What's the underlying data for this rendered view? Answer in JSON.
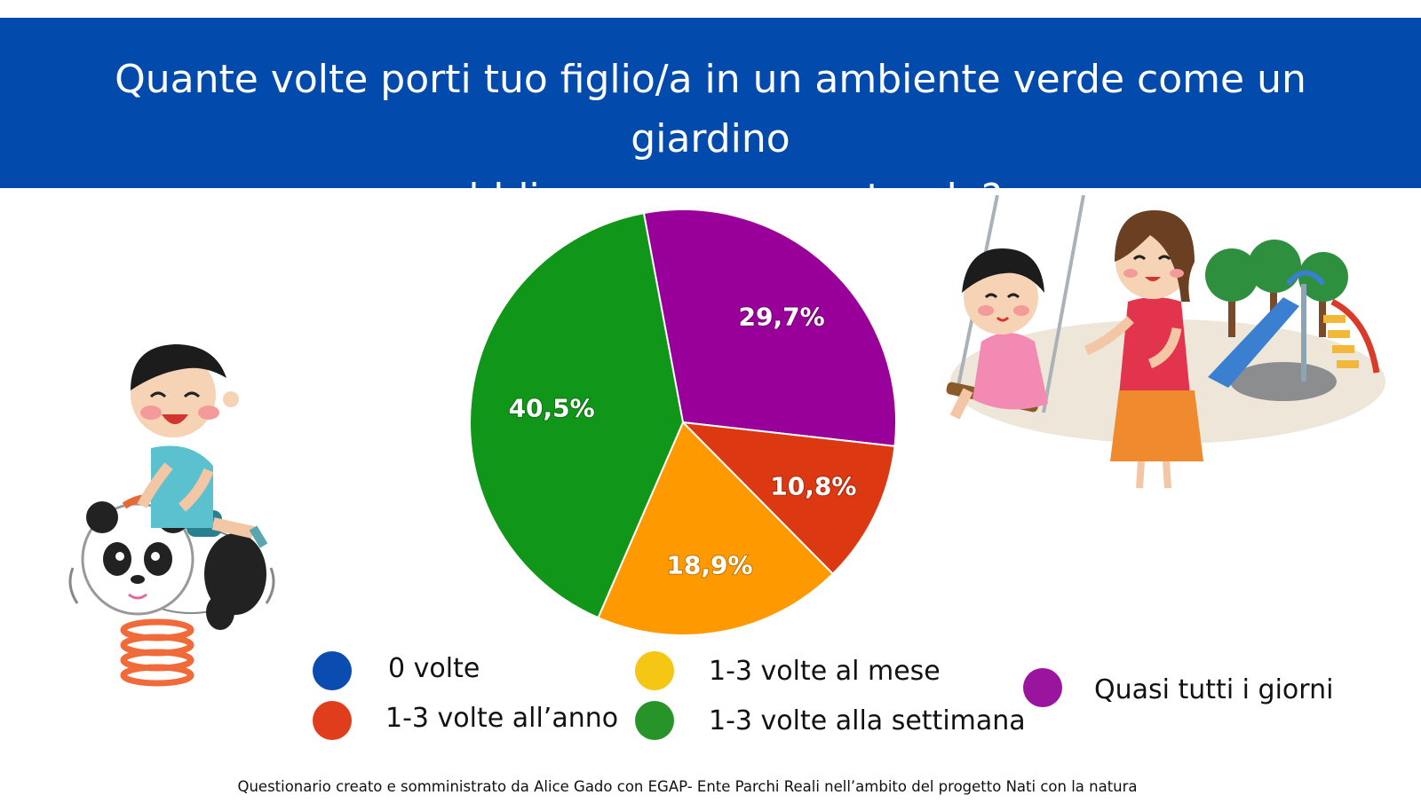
{
  "header": {
    "title_line1": "Quante volte porti tuo figlio/a in un ambiente verde come un giardino",
    "title_line2": "pubblico o un parco naturale?"
  },
  "chart_data": {
    "type": "pie",
    "categories": [
      "0 volte",
      "1-3 volte all’anno",
      "1-3 volte al mese",
      "1-3 volte alla settimana",
      "Quasi tutti i giorni"
    ],
    "values": [
      0,
      10.8,
      18.9,
      40.5,
      29.7
    ],
    "value_labels": [
      "",
      "10,8%",
      "18,9%",
      "40,5%",
      "29,7%"
    ],
    "colors": [
      "#0b4cb0",
      "#dc3912",
      "#ff9900",
      "#109618",
      "#990099"
    ],
    "legend_colors": [
      "#0b4cb0",
      "#df3d1c",
      "#f5c614",
      "#27942a",
      "#9b149e"
    ],
    "start_angle_deg": -8,
    "legend_placement": "bottom"
  },
  "legend": {
    "items": [
      {
        "label": "0 volte",
        "color": "#0b4cb0"
      },
      {
        "label": "1-3 volte all’anno",
        "color": "#df3d1c"
      },
      {
        "label": "1-3 volte al mese",
        "color": "#f5c614"
      },
      {
        "label": "1-3 volte alla settimana",
        "color": "#27942a"
      },
      {
        "label": "Quasi tutti i giorni",
        "color": "#9b149e"
      }
    ]
  },
  "footer": {
    "text": "Questionario creato e somministrato da Alice Gado con EGAP- Ente Parchi Reali nell’ambito del progetto Nati con la natura"
  },
  "illustrations": {
    "left": "child-on-panda-spring-rider",
    "right": "mother-and-girl-on-swing-playground"
  }
}
